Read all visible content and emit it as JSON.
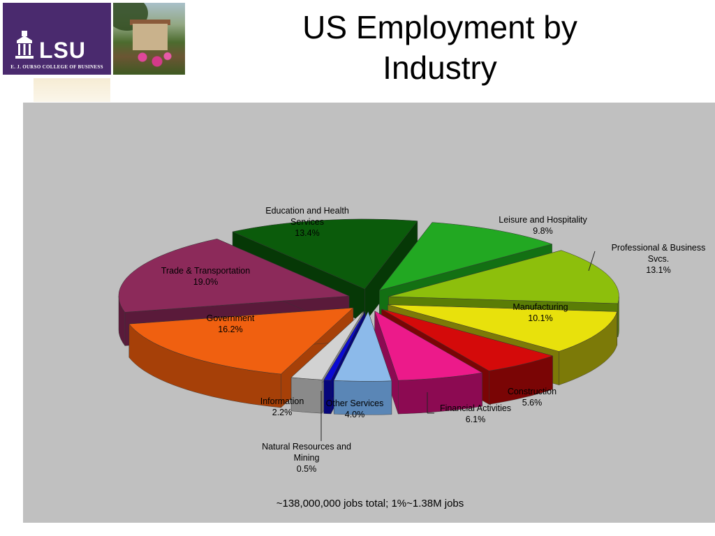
{
  "header": {
    "title_line1": "US Employment by",
    "title_line2": "Industry",
    "logo_word": "LSU",
    "logo_college": "E. J. OURSO COLLEGE OF BUSINESS"
  },
  "chart_data": {
    "type": "pie",
    "title": "",
    "slices": [
      {
        "name": "Education and Health",
        "name2": "Services",
        "value": 13.4,
        "label": "13.4%",
        "color": "#0b5b0b",
        "dark": "#063806"
      },
      {
        "name": "Leisure and Hospitality",
        "name2": "",
        "value": 9.8,
        "label": "9.8%",
        "color": "#22a822",
        "dark": "#137013"
      },
      {
        "name": "Professional & Business",
        "name2": "Svcs.",
        "value": 13.1,
        "label": "13.1%",
        "color": "#8dbf0c",
        "dark": "#5a7d06"
      },
      {
        "name": "Manufacturing",
        "name2": "",
        "value": 10.1,
        "label": "10.1%",
        "color": "#e8e10c",
        "dark": "#7c7a08"
      },
      {
        "name": "Construction",
        "name2": "",
        "value": 5.6,
        "label": "5.6%",
        "color": "#d40a0a",
        "dark": "#7a0505"
      },
      {
        "name": "Financial Activities",
        "name2": "",
        "value": 6.1,
        "label": "6.1%",
        "color": "#ec1a8a",
        "dark": "#8c0a52"
      },
      {
        "name": "Other Services",
        "name2": "",
        "value": 4.0,
        "label": "4.0%",
        "color": "#8cbaea",
        "dark": "#5a86b6"
      },
      {
        "name": "Natural Resources and",
        "name2": "Mining",
        "value": 0.5,
        "label": "0.5%",
        "color": "#0a0ad4",
        "dark": "#05057a"
      },
      {
        "name": "Information",
        "name2": "",
        "value": 2.2,
        "label": "2.2%",
        "color": "#d2d2d2",
        "dark": "#8a8a8a"
      },
      {
        "name": "Government",
        "name2": "",
        "value": 16.2,
        "label": "16.2%",
        "color": "#f06010",
        "dark": "#a64008"
      },
      {
        "name": "Trade & Transportation",
        "name2": "",
        "value": 19.0,
        "label": "19.0%",
        "color": "#8c2a5a",
        "dark": "#5a1a3a"
      }
    ],
    "footnote": "~138,000,000 jobs total; 1%~1.38M jobs"
  }
}
